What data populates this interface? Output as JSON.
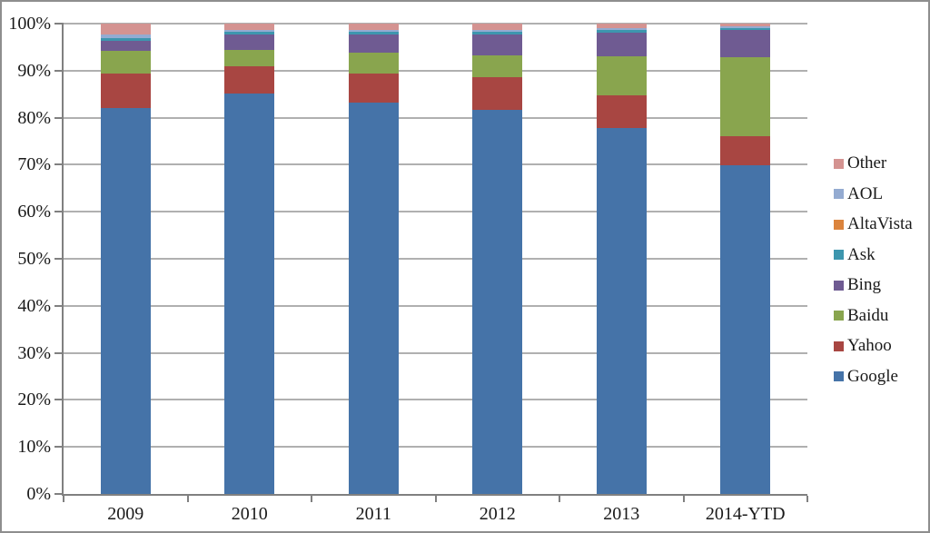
{
  "chart_data": {
    "type": "bar",
    "stacked": true,
    "percent_stacked": true,
    "title": "",
    "xlabel": "",
    "ylabel": "",
    "grid": true,
    "legend_position": "right",
    "categories": [
      "2009",
      "2010",
      "2011",
      "2012",
      "2013",
      "2014-YTD"
    ],
    "series": [
      {
        "name": "Google",
        "color": "#4573A8",
        "values": [
          82.0,
          85.2,
          83.2,
          81.6,
          77.8,
          69.8
        ]
      },
      {
        "name": "Yahoo",
        "color": "#A84642",
        "values": [
          7.4,
          5.7,
          6.1,
          7.0,
          6.9,
          6.2
        ]
      },
      {
        "name": "Baidu",
        "color": "#89A54E",
        "values": [
          4.9,
          3.5,
          4.6,
          4.7,
          8.4,
          16.9
        ]
      },
      {
        "name": "Bing",
        "color": "#6F5B92",
        "values": [
          2.1,
          3.2,
          3.7,
          4.3,
          4.9,
          5.8
        ]
      },
      {
        "name": "Ask",
        "color": "#3D96AE",
        "values": [
          0.5,
          0.6,
          0.6,
          0.6,
          0.7,
          0.4
        ]
      },
      {
        "name": "AltaVista",
        "color": "#DB843D",
        "values": [
          0.0,
          0.0,
          0.0,
          0.0,
          0.0,
          0.0
        ]
      },
      {
        "name": "AOL",
        "color": "#94ABD1",
        "values": [
          0.8,
          0.4,
          0.5,
          0.5,
          0.4,
          0.4
        ]
      },
      {
        "name": "Other",
        "color": "#D49391",
        "values": [
          2.3,
          1.4,
          1.3,
          1.3,
          0.9,
          0.5
        ]
      }
    ],
    "legend_order_top_to_bottom": [
      "Other",
      "AOL",
      "AltaVista",
      "Ask",
      "Bing",
      "Baidu",
      "Yahoo",
      "Google"
    ],
    "y_axis": {
      "min": 0,
      "max": 100,
      "step": 10,
      "tick_labels": [
        "0%",
        "10%",
        "20%",
        "30%",
        "40%",
        "50%",
        "60%",
        "70%",
        "80%",
        "90%",
        "100%"
      ]
    }
  }
}
